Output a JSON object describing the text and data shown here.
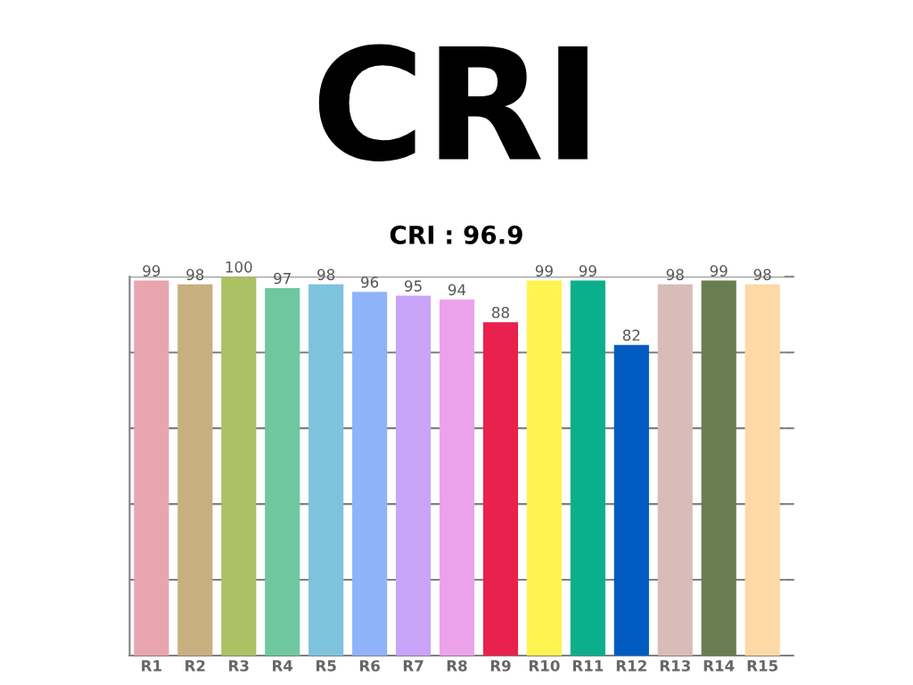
{
  "chart_data": {
    "type": "bar",
    "title": "CRI",
    "subtitle": "CRI : 96.9",
    "categories": [
      "R1",
      "R2",
      "R3",
      "R4",
      "R5",
      "R6",
      "R7",
      "R8",
      "R9",
      "R10",
      "R11",
      "R12",
      "R13",
      "R14",
      "R15"
    ],
    "values": [
      99,
      98,
      100,
      97,
      98,
      96,
      95,
      94,
      88,
      99,
      99,
      82,
      98,
      99,
      98
    ],
    "colors": [
      "#e8a5b0",
      "#c9ae80",
      "#abc163",
      "#6fc7a0",
      "#7ec3de",
      "#8fb3f9",
      "#c9a4f9",
      "#eca2eb",
      "#e8214d",
      "#fef350",
      "#0caf8b",
      "#005bc0",
      "#d9bcb8",
      "#6a7d50",
      "#fdd9a5"
    ],
    "ylim": [
      0,
      100
    ],
    "yticks": [
      {
        "value": 0,
        "label": null
      },
      {
        "value": 20,
        "label": null
      },
      {
        "value": 40,
        "label": null
      },
      {
        "value": 60,
        "label": null
      },
      {
        "value": 80,
        "label": null
      },
      {
        "value": 100,
        "label": null
      }
    ],
    "tick_labels": "x",
    "grid": "y",
    "data_labels": true,
    "legend": false
  }
}
